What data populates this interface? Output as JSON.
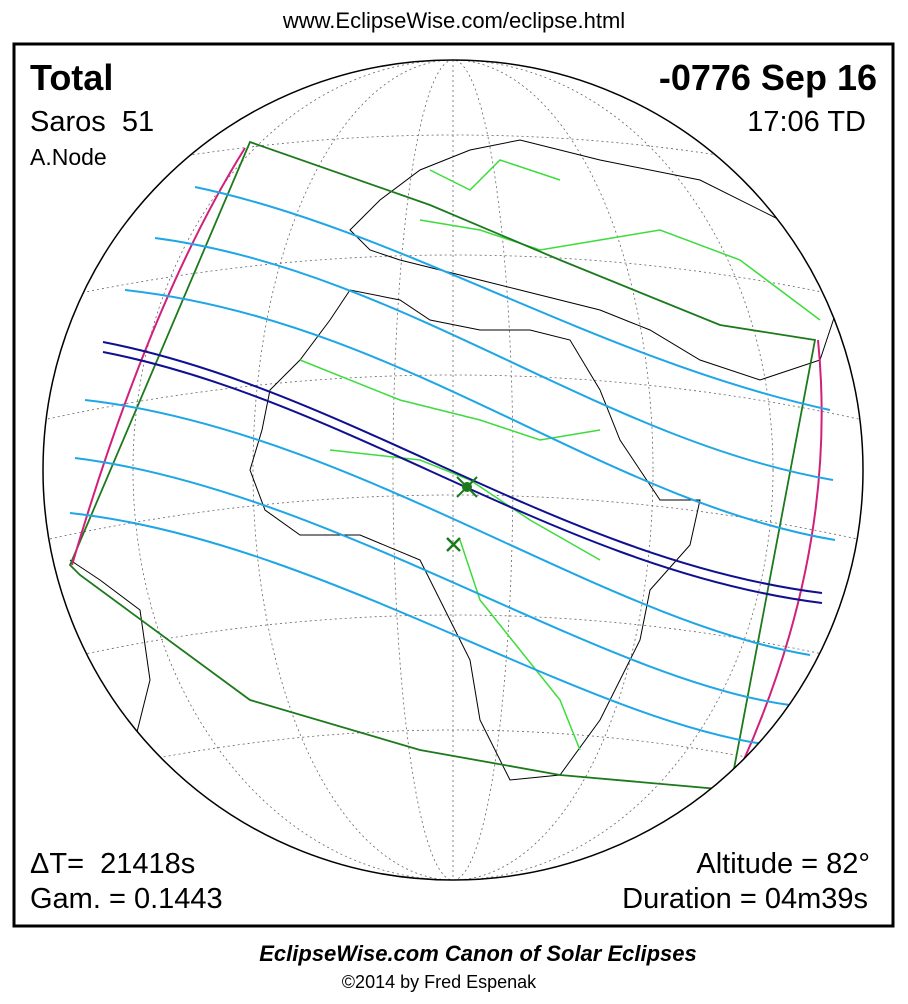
{
  "header": {
    "url": "www.EclipseWise.com/eclipse.html"
  },
  "info": {
    "type": "Total",
    "saros": "Saros  51",
    "node": "A.Node",
    "date": "-0776 Sep 16",
    "time": "17:06 TD",
    "delta_t": "ΔT=  21418s",
    "gamma": "Gam. = 0.1443",
    "altitude": "Altitude = 82°",
    "duration": "Duration = 04m39s"
  },
  "footer": {
    "title": "EclipseWise.com Canon of Solar Eclipses",
    "credit": "©2014 by Fred Espenak"
  }
}
